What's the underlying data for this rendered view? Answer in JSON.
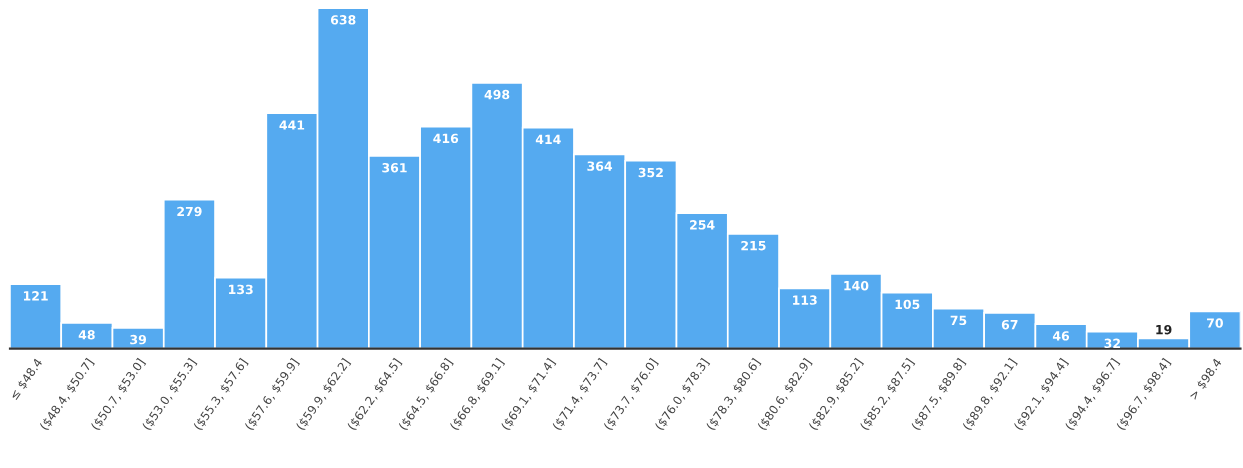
{
  "chart_data": {
    "type": "bar",
    "categories": [
      "≤ $48.4",
      "($48.4, $50.7]",
      "($50.7, $53.0]",
      "($53.0, $55.3]",
      "($55.3, $57.6]",
      "($57.6, $59.9]",
      "($59.9, $62.2]",
      "($62.2, $64.5]",
      "($64.5, $66.8]",
      "($66.8, $69.1]",
      "($69.1, $71.4]",
      "($71.4, $73.7]",
      "($73.7, $76.0]",
      "($76.0, $78.3]",
      "($78.3, $80.6]",
      "($80.6, $82.9]",
      "($82.9, $85.2]",
      "($85.2, $87.5]",
      "($87.5, $89.8]",
      "($89.8, $92.1]",
      "($92.1, $94.4]",
      "($94.4, $96.7]",
      "($96.7, $98.4]",
      "> $98.4"
    ],
    "values": [
      121,
      48,
      39,
      279,
      133,
      441,
      638,
      361,
      416,
      498,
      414,
      364,
      352,
      254,
      215,
      113,
      140,
      105,
      75,
      67,
      46,
      32,
      19,
      70
    ],
    "color": "#55aaf0",
    "data_labels": true,
    "tick_labels": "x",
    "grid": false,
    "legend": false
  }
}
